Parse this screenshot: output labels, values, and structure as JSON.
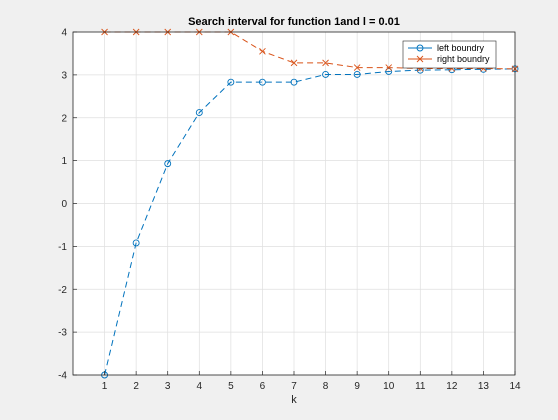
{
  "chart_data": {
    "type": "line",
    "title": "Search interval for function 1and l = 0.01",
    "xlabel": "k",
    "ylabel": "",
    "xlim": [
      0,
      14
    ],
    "ylim": [
      -4,
      4
    ],
    "xticks": [
      1,
      2,
      3,
      4,
      5,
      6,
      7,
      8,
      9,
      10,
      11,
      12,
      13,
      14
    ],
    "yticks": [
      -4,
      -3,
      -2,
      -1,
      0,
      1,
      2,
      3,
      4
    ],
    "grid": true,
    "legend_position": "top-right",
    "x": [
      1,
      2,
      3,
      4,
      5,
      6,
      7,
      8,
      9,
      10,
      11,
      12,
      13,
      14
    ],
    "series": [
      {
        "name": "left boundry",
        "color": "#0072BD",
        "marker": "circle",
        "line_style": "dashed",
        "values": [
          -4.0,
          -0.92,
          0.93,
          2.12,
          2.83,
          2.83,
          2.83,
          3.01,
          3.01,
          3.08,
          3.11,
          3.12,
          3.13,
          3.14
        ]
      },
      {
        "name": "right boundry",
        "color": "#D95319",
        "marker": "x",
        "line_style": "dashed",
        "values": [
          4.0,
          4.0,
          4.0,
          4.0,
          4.0,
          3.55,
          3.28,
          3.28,
          3.17,
          3.17,
          3.15,
          3.15,
          3.15,
          3.14
        ]
      }
    ]
  }
}
